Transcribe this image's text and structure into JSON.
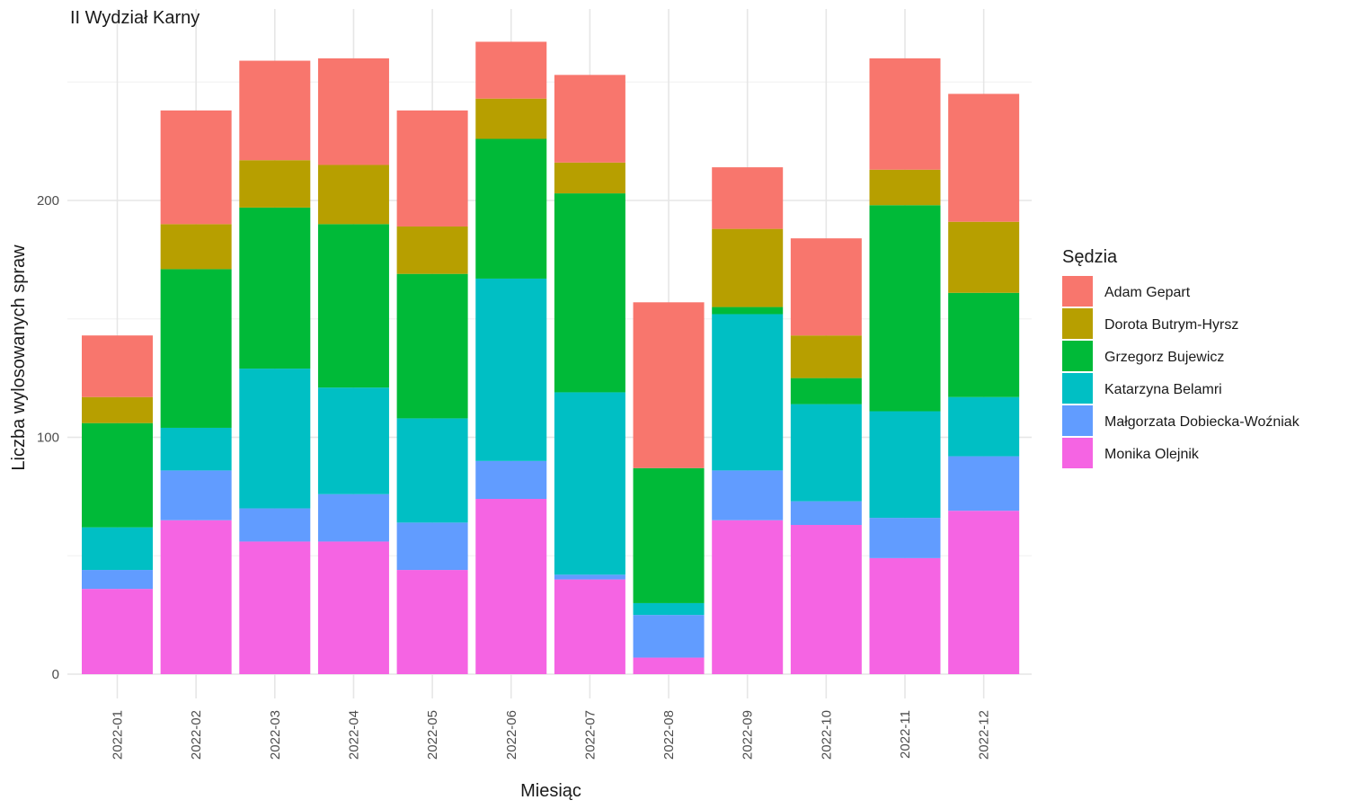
{
  "chart_data": {
    "type": "bar",
    "stacked": true,
    "title": "II Wydział Karny",
    "xlabel": "Miesiąc",
    "ylabel": "Liczba wylosowanych spraw",
    "ylim": [
      0,
      270
    ],
    "yticks": [
      0,
      100,
      200
    ],
    "grid": true,
    "legend_title": "Sędzia",
    "legend_position": "right",
    "categories": [
      "2022-01",
      "2022-02",
      "2022-03",
      "2022-04",
      "2022-05",
      "2022-06",
      "2022-07",
      "2022-08",
      "2022-09",
      "2022-10",
      "2022-11",
      "2022-12"
    ],
    "series": [
      {
        "name": "Monika Olejnik",
        "color": "#F564E3",
        "values": [
          36,
          65,
          56,
          56,
          44,
          74,
          40,
          7,
          65,
          63,
          49,
          69
        ]
      },
      {
        "name": "Małgorzata Dobiecka-Woźniak",
        "color": "#619CFF",
        "values": [
          8,
          21,
          14,
          20,
          20,
          16,
          2,
          18,
          21,
          10,
          17,
          23
        ]
      },
      {
        "name": "Katarzyna Belamri",
        "color": "#00BFC4",
        "values": [
          18,
          18,
          59,
          45,
          44,
          77,
          77,
          5,
          66,
          41,
          45,
          25
        ]
      },
      {
        "name": "Grzegorz Bujewicz",
        "color": "#00BA38",
        "values": [
          44,
          67,
          68,
          69,
          61,
          59,
          84,
          57,
          3,
          11,
          87,
          44
        ]
      },
      {
        "name": "Dorota Butrym-Hyrsz",
        "color": "#B79F00",
        "values": [
          11,
          19,
          20,
          25,
          20,
          17,
          13,
          0,
          33,
          18,
          15,
          30
        ]
      },
      {
        "name": "Adam Gepart",
        "color": "#F8766D",
        "values": [
          26,
          48,
          42,
          45,
          49,
          24,
          37,
          70,
          26,
          41,
          47,
          54
        ]
      }
    ],
    "legend_order": [
      "Adam Gepart",
      "Dorota Butrym-Hyrsz",
      "Grzegorz Bujewicz",
      "Katarzyna Belamri",
      "Małgorzata Dobiecka-Woźniak",
      "Monika Olejnik"
    ]
  }
}
